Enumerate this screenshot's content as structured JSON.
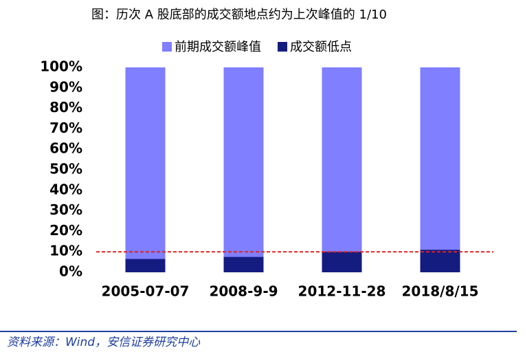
{
  "chart_data": {
    "type": "bar",
    "title": "图：历次 A 股底部的成交额地点约为上次峰值的 1/10",
    "categories": [
      "2005-07-07",
      "2008-9-9",
      "2012-11-28",
      "2018/8/15"
    ],
    "series": [
      {
        "name": "前期成交额峰值",
        "color": "#7f7fff",
        "values": [
          100,
          100,
          100,
          100
        ]
      },
      {
        "name": "成交额低点",
        "color": "#141c80",
        "values": [
          6.5,
          7.5,
          10,
          11
        ]
      }
    ],
    "ylim": [
      0,
      100
    ],
    "yticks": [
      {
        "value": 0,
        "label": "0%"
      },
      {
        "value": 10,
        "label": "10%"
      },
      {
        "value": 20,
        "label": "20%"
      },
      {
        "value": 30,
        "label": "30%"
      },
      {
        "value": 40,
        "label": "40%"
      },
      {
        "value": 50,
        "label": "50%"
      },
      {
        "value": 60,
        "label": "60%"
      },
      {
        "value": 70,
        "label": "70%"
      },
      {
        "value": 80,
        "label": "80%"
      },
      {
        "value": 90,
        "label": "90%"
      },
      {
        "value": 100,
        "label": "100%"
      }
    ],
    "reference_line": {
      "value": 10,
      "color": "#e02020"
    },
    "legend": "top",
    "source": "资料来源：Wind，安信证券研究中心"
  }
}
